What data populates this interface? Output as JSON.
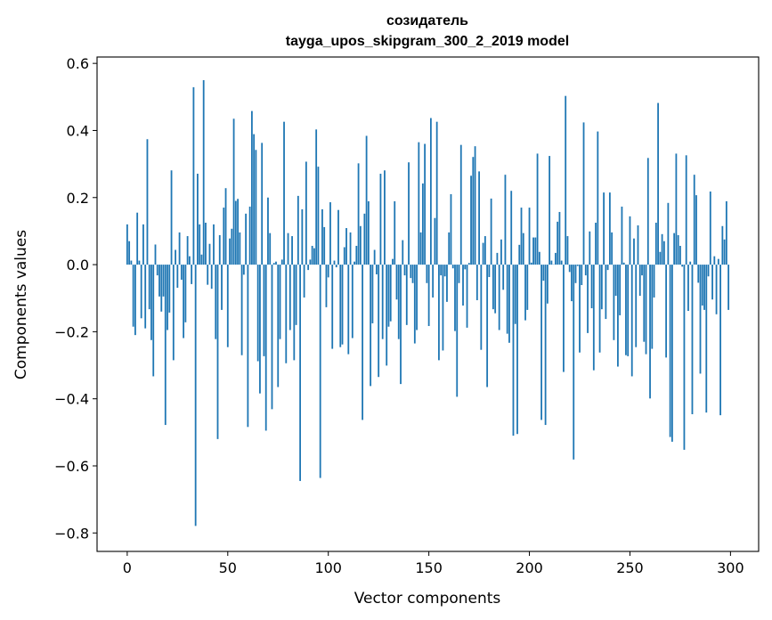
{
  "chart_data": {
    "type": "bar",
    "title": "созидатель",
    "subtitle": "tayga_upos_skipgram_300_2_2019 model",
    "xlabel": "Vector components",
    "ylabel": "Components values",
    "xlim": [
      -15,
      314
    ],
    "ylim": [
      -0.855,
      0.619
    ],
    "xticks": [
      0,
      50,
      100,
      150,
      200,
      250,
      300
    ],
    "xtick_labels": [
      "0",
      "50",
      "100",
      "150",
      "200",
      "250",
      "300"
    ],
    "yticks": [
      0.6,
      0.4,
      0.2,
      0.0,
      -0.2,
      -0.4,
      -0.6,
      -0.8
    ],
    "ytick_labels": [
      "0.6",
      "0.4",
      "0.2",
      "0.0",
      "−0.2",
      "−0.4",
      "−0.6",
      "−0.8"
    ],
    "grid": false,
    "color": "#1f77b4",
    "values": [
      0.12,
      0.07,
      0.012,
      -0.185,
      -0.21,
      0.155,
      0.012,
      -0.16,
      0.12,
      -0.19,
      0.374,
      -0.133,
      -0.225,
      -0.333,
      0.06,
      -0.032,
      -0.095,
      -0.14,
      -0.095,
      -0.478,
      -0.195,
      -0.143,
      0.281,
      -0.285,
      0.044,
      -0.069,
      0.096,
      -0.045,
      -0.219,
      -0.172,
      0.085,
      0.025,
      -0.058,
      0.529,
      -0.779,
      0.271,
      0.12,
      0.03,
      0.55,
      0.125,
      -0.06,
      0.062,
      -0.072,
      0.12,
      -0.222,
      -0.52,
      0.088,
      -0.135,
      0.17,
      0.228,
      -0.246,
      0.078,
      0.107,
      0.435,
      0.19,
      0.196,
      0.096,
      -0.27,
      -0.03,
      0.152,
      -0.484,
      0.173,
      0.458,
      0.389,
      0.342,
      -0.288,
      -0.384,
      0.363,
      -0.273,
      -0.495,
      0.2,
      0.094,
      -0.431,
      0.005,
      0.009,
      -0.365,
      -0.222,
      0.015,
      0.426,
      -0.294,
      0.094,
      -0.195,
      0.085,
      -0.285,
      -0.18,
      0.205,
      -0.645,
      0.165,
      -0.098,
      0.307,
      -0.016,
      0.015,
      0.056,
      0.049,
      0.403,
      0.292,
      -0.636,
      0.165,
      0.112,
      -0.127,
      -0.038,
      0.186,
      -0.251,
      0.012,
      -0.008,
      0.163,
      -0.246,
      -0.238,
      0.052,
      0.109,
      -0.267,
      0.096,
      -0.219,
      0.009,
      0.056,
      0.302,
      0.115,
      -0.463,
      0.152,
      0.384,
      0.189,
      -0.362,
      -0.175,
      0.044,
      -0.029,
      -0.335,
      0.271,
      -0.222,
      0.281,
      -0.301,
      -0.185,
      -0.169,
      0.017,
      0.189,
      -0.104,
      -0.222,
      -0.356,
      0.073,
      -0.032,
      -0.18,
      0.305,
      -0.04,
      -0.055,
      -0.235,
      -0.195,
      0.365,
      0.096,
      0.242,
      0.36,
      -0.055,
      -0.183,
      0.437,
      -0.098,
      0.139,
      0.426,
      -0.285,
      -0.032,
      -0.256,
      -0.035,
      -0.111,
      0.096,
      0.21,
      -0.011,
      -0.198,
      -0.394,
      -0.055,
      0.357,
      -0.122,
      -0.014,
      -0.188,
      0.005,
      0.265,
      0.321,
      0.353,
      -0.106,
      0.278,
      -0.254,
      0.065,
      0.085,
      -0.365,
      -0.037,
      0.197,
      -0.133,
      -0.145,
      0.035,
      -0.195,
      0.075,
      -0.075,
      0.268,
      -0.206,
      -0.233,
      0.22,
      -0.51,
      -0.177,
      -0.505,
      0.059,
      0.17,
      0.094,
      -0.166,
      -0.135,
      0.17,
      0.006,
      0.081,
      0.081,
      0.331,
      0.038,
      -0.463,
      -0.048,
      -0.478,
      -0.116,
      0.324,
      0.012,
      0.001,
      0.035,
      0.128,
      0.157,
      0.012,
      -0.32,
      0.503,
      0.085,
      -0.022,
      -0.109,
      -0.581,
      -0.055,
      -0.004,
      -0.262,
      -0.061,
      0.424,
      -0.032,
      -0.204,
      0.099,
      -0.13,
      -0.315,
      0.125,
      0.397,
      -0.262,
      -0.133,
      0.215,
      -0.162,
      -0.016,
      0.215,
      0.096,
      -0.225,
      -0.093,
      -0.304,
      -0.151,
      0.173,
      0.006,
      -0.27,
      -0.273,
      0.144,
      -0.333,
      0.078,
      -0.246,
      0.117,
      -0.093,
      -0.032,
      -0.23,
      -0.267,
      0.318,
      -0.399,
      -0.251,
      -0.098,
      0.125,
      0.482,
      0.038,
      0.091,
      0.07,
      -0.277,
      0.184,
      -0.514,
      -0.528,
      0.094,
      0.331,
      0.088,
      0.056,
      -0.006,
      -0.552,
      0.326,
      -0.138,
      0.009,
      -0.446,
      0.268,
      0.207,
      -0.054,
      -0.325,
      -0.122,
      -0.135,
      -0.441,
      -0.035,
      0.218,
      -0.104,
      0.025,
      -0.148,
      0.017,
      -0.449,
      0.115,
      0.075,
      0.189,
      -0.135
    ]
  }
}
